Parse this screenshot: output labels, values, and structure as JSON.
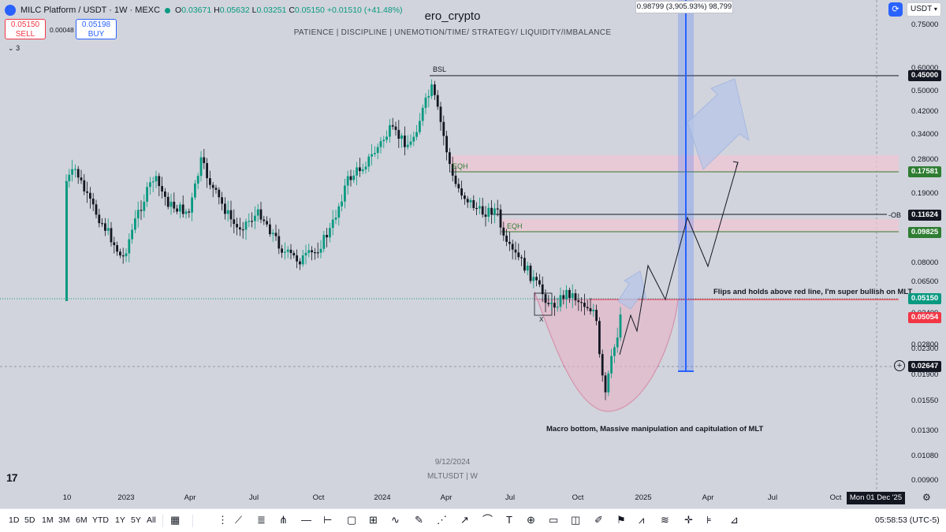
{
  "header": {
    "symbol_line": "MILC Platform / USDT · 1W · MEXC",
    "open_label": "O",
    "open": "0.03671",
    "high_label": "H",
    "high": "0.05632",
    "low_label": "L",
    "low": "0.03251",
    "close_label": "C",
    "close": "0.05150",
    "change": "+0.01510 (+41.48%)",
    "sell_price": "0.05150",
    "sell_label": "SELL",
    "spread": "0.00048",
    "buy_price": "0.05198",
    "buy_label": "BUY",
    "indicator_count": "3"
  },
  "author": "ero_crypto",
  "slogan": "PATIENCE  |  DISCIPLINE  |  UNEMOTION/TIME/ STRATEGY/ LIQUIDITY/IMBALANCE",
  "watermark": {
    "date": "9/12/2024",
    "symbol": "MLTUSDT | W"
  },
  "measure_label": "0.98799 (3,905.93%) 98,799",
  "currency": {
    "label": "USDT",
    "colors": {
      "button": "#2962ff"
    }
  },
  "annotations": {
    "bsl": "BSL",
    "eqh_top": "EQH",
    "eqh_bottom": "EQH",
    "ob": "-OB",
    "x": "X",
    "flip_text": "Flips and holds above red line, I'm super bullish on MLT",
    "bottom_text": "Macro bottom, Massive manipulation and capitulation of MLT"
  },
  "price_axis": [
    "0.75000",
    "0.60000",
    "0.50000",
    "0.42000",
    "0.34000",
    "0.28000",
    "0.23000",
    "0.19000",
    "0.15000",
    "0.12000",
    "0.08000",
    "0.06500",
    "0.03400",
    "0.02800",
    "0.02300",
    "0.01900",
    "0.01550",
    "0.01300",
    "0.01080",
    "0.00900"
  ],
  "price_tags": [
    {
      "value": "0.45000",
      "bg": "#131722",
      "fg": "#ffffff"
    },
    {
      "value": "0.17581",
      "bg": "#2e7d32",
      "fg": "#ffffff"
    },
    {
      "value": "0.11624",
      "bg": "#131722",
      "fg": "#ffffff"
    },
    {
      "value": "0.09825",
      "bg": "#2e7d32",
      "fg": "#ffffff"
    },
    {
      "value": "0.05150",
      "bg": "#089981",
      "fg": "#ffffff"
    },
    {
      "value": "0.05054",
      "bg": "#f23645",
      "fg": "#ffffff"
    },
    {
      "value": "0.02647",
      "bg": "#131722",
      "fg": "#ffffff"
    }
  ],
  "time_axis": [
    "10",
    "2023",
    "Apr",
    "Jul",
    "Oct",
    "2024",
    "Apr",
    "Jul",
    "Oct",
    "2025",
    "Apr",
    "Jul",
    "Oct"
  ],
  "time_cursor": "Mon 01 Dec '25",
  "toolbar": {
    "timeframes": [
      "1D",
      "5D",
      "1M",
      "3M",
      "6M",
      "YTD",
      "1Y",
      "5Y",
      "All"
    ],
    "clock": "05:58:53 (UTC-5)"
  },
  "colors": {
    "up": "#089981",
    "down": "#131722",
    "resistance": "#f23645",
    "zone": "#f2c6d3",
    "projection": "#2962ff"
  }
}
